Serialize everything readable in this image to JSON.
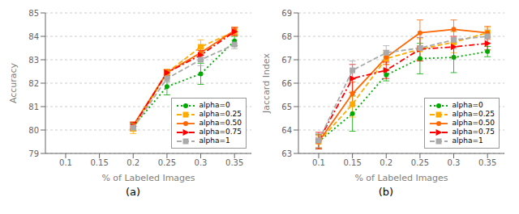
{
  "chart_data": [
    {
      "type": "line",
      "title": "(a)",
      "x_label": "% of Labeled Images",
      "y_label": "Accuracy",
      "x": [
        0.2,
        0.25,
        0.3,
        0.35
      ],
      "xlim": [
        0.07,
        0.375
      ],
      "xticks": [
        0.1,
        0.15,
        0.2,
        0.25,
        0.3,
        0.35
      ],
      "ylim": [
        79,
        85
      ],
      "yticks": [
        79,
        80,
        81,
        82,
        83,
        84,
        85
      ],
      "grid": true,
      "legend": "lower right",
      "series": [
        {
          "name": "alpha=0",
          "color": "#00aa00",
          "line_style": "dotted",
          "marker": "circle",
          "values": [
            80.15,
            81.85,
            82.4,
            83.8
          ],
          "errors": [
            0.15,
            0.35,
            0.45,
            0.2
          ]
        },
        {
          "name": "alpha=0.25",
          "color": "#ffaa00",
          "line_style": "dashed",
          "marker": "square",
          "values": [
            80.05,
            82.45,
            83.55,
            84.2
          ],
          "errors": [
            0.2,
            0.15,
            0.3,
            0.18
          ]
        },
        {
          "name": "alpha=0.50",
          "color": "#ff6600",
          "line_style": "solid",
          "marker": "circle",
          "values": [
            80.2,
            82.45,
            83.3,
            84.25
          ],
          "errors": [
            0.15,
            0.12,
            0.2,
            0.15
          ]
        },
        {
          "name": "alpha=0.75",
          "color": "#ff0000",
          "line_style": "dashdot",
          "marker": "triangle",
          "values": [
            80.15,
            82.45,
            83.2,
            84.2
          ],
          "errors": [
            0.18,
            0.12,
            0.2,
            0.15
          ]
        },
        {
          "name": "alpha=1",
          "color": "#aaaaaa",
          "line_style": "dashed",
          "marker": "square",
          "values": [
            80.1,
            82.2,
            83.0,
            83.65
          ],
          "errors": [
            0.15,
            0.15,
            0.25,
            0.18
          ]
        }
      ]
    },
    {
      "type": "line",
      "title": "(b)",
      "x_label": "% of Labeled Images",
      "y_label": "Jaccard Index",
      "x": [
        0.1,
        0.15,
        0.2,
        0.25,
        0.3,
        0.35
      ],
      "xlim": [
        0.07,
        0.375
      ],
      "xticks": [
        0.1,
        0.15,
        0.2,
        0.25,
        0.3,
        0.35
      ],
      "ylim": [
        63,
        69
      ],
      "yticks": [
        63,
        64,
        65,
        66,
        67,
        68,
        69
      ],
      "grid": true,
      "legend": "lower right",
      "series": [
        {
          "name": "alpha=0",
          "color": "#00aa00",
          "line_style": "dotted",
          "marker": "circle",
          "values": [
            63.5,
            64.7,
            66.35,
            67.05,
            67.1,
            67.35
          ],
          "errors": [
            0.3,
            0.75,
            0.25,
            0.65,
            0.65,
            0.22
          ]
        },
        {
          "name": "alpha=0.25",
          "color": "#ffaa00",
          "line_style": "dashed",
          "marker": "square",
          "values": [
            63.5,
            65.1,
            67.05,
            67.45,
            67.75,
            68.15
          ],
          "errors": [
            0.25,
            0.55,
            0.25,
            0.45,
            0.45,
            0.22
          ]
        },
        {
          "name": "alpha=0.50",
          "color": "#ff6600",
          "line_style": "solid",
          "marker": "circle",
          "values": [
            63.5,
            65.55,
            67.1,
            68.15,
            68.3,
            68.15
          ],
          "errors": [
            0.3,
            0.5,
            0.3,
            0.55,
            0.4,
            0.28
          ]
        },
        {
          "name": "alpha=0.75",
          "color": "#ff0000",
          "line_style": "dashdot",
          "marker": "triangle",
          "values": [
            63.55,
            66.2,
            66.55,
            67.45,
            67.55,
            67.7
          ],
          "errors": [
            0.35,
            0.6,
            0.35,
            0.5,
            0.45,
            0.28
          ]
        },
        {
          "name": "alpha=1",
          "color": "#aaaaaa",
          "line_style": "dashed",
          "marker": "square",
          "values": [
            63.55,
            66.55,
            67.3,
            67.5,
            67.85,
            68.0
          ],
          "errors": [
            0.3,
            0.4,
            0.3,
            0.45,
            0.38,
            0.28
          ]
        }
      ]
    }
  ]
}
